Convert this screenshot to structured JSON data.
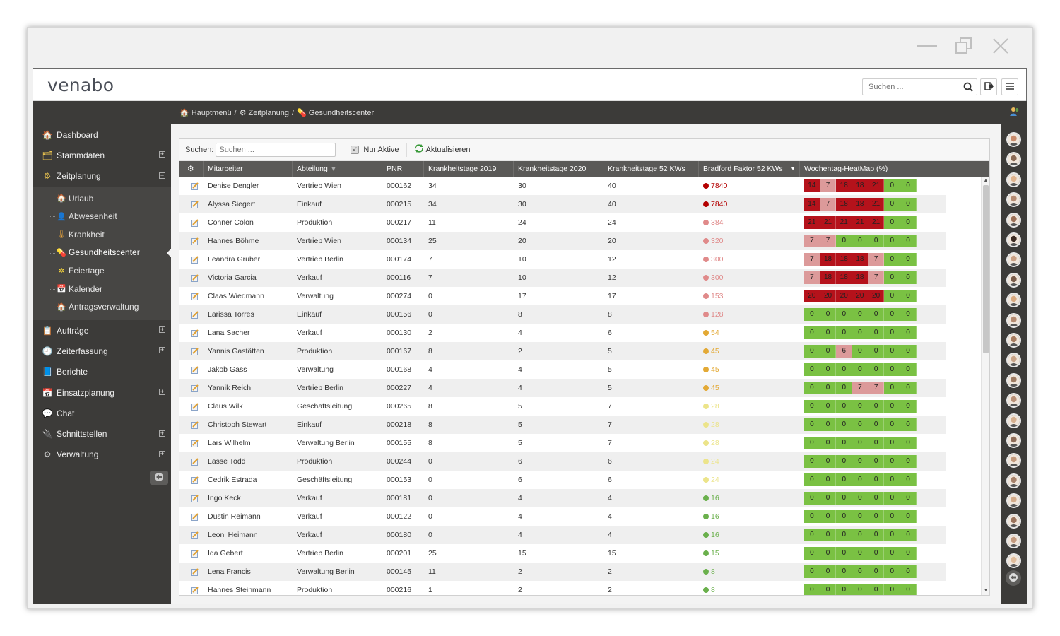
{
  "window": {
    "controls": [
      "minimize-icon",
      "restore-icon",
      "close-icon"
    ]
  },
  "header": {
    "logo": "venabo",
    "search_placeholder": "Suchen ..."
  },
  "sidebar": {
    "items": [
      {
        "label": "Dashboard",
        "icon": "home-icon",
        "expandable": false
      },
      {
        "label": "Stammdaten",
        "icon": "folder-icon",
        "expandable": true,
        "expander": "⊞"
      },
      {
        "label": "Zeitplanung",
        "icon": "gear-clock-icon",
        "expandable": true,
        "expander": "⊟"
      }
    ],
    "submenu": [
      {
        "label": "Urlaub",
        "icon": "umbrella-house-icon"
      },
      {
        "label": "Abwesenheit",
        "icon": "person-icon"
      },
      {
        "label": "Krankheit",
        "icon": "thermometer-icon"
      },
      {
        "label": "Gesundheitscenter",
        "icon": "pill-icon",
        "selected": true
      },
      {
        "label": "Feiertage",
        "icon": "star-icon"
      },
      {
        "label": "Kalender",
        "icon": "calendar-icon"
      },
      {
        "label": "Antragsverwaltung",
        "icon": "house-icon"
      }
    ],
    "items_after": [
      {
        "label": "Aufträge",
        "icon": "orders-icon",
        "expandable": true,
        "expander": "⊞"
      },
      {
        "label": "Zeiterfassung",
        "icon": "clock-icon",
        "expandable": true,
        "expander": "⊞"
      },
      {
        "label": "Berichte",
        "icon": "report-icon",
        "expandable": false
      },
      {
        "label": "Einsatzplanung",
        "icon": "planning-icon",
        "expandable": true,
        "expander": "⊞"
      },
      {
        "label": "Chat",
        "icon": "chat-icon",
        "expandable": false
      },
      {
        "label": "Schnittstellen",
        "icon": "interface-icon",
        "expandable": true,
        "expander": "⊞"
      },
      {
        "label": "Verwaltung",
        "icon": "cog-icon",
        "expandable": true,
        "expander": "⊞"
      }
    ]
  },
  "breadcrumb": {
    "items": [
      "Hauptmenü",
      "Zeitplanung",
      "Gesundheitscenter"
    ],
    "separator": "/"
  },
  "toolbar": {
    "search_label": "Suchen:",
    "search_placeholder": "Suchen ...",
    "only_active_label": "Nur Aktive",
    "only_active_checked": true,
    "refresh_label": "Aktualisieren"
  },
  "table": {
    "columns": [
      "Mitarbeiter",
      "Abteilung",
      "PNR",
      "Krankheitstage 2019",
      "Krankheitstage 2020",
      "Krankheitstage 52 KWs",
      "Bradford Faktor 52 KWs",
      "Wochentag-HeatMap (%)"
    ],
    "rows": [
      {
        "name": "Denise Dengler",
        "dept": "Vertrieb Wien",
        "pnr": "000162",
        "k2019": "34",
        "k2020": "30",
        "k52": "40",
        "bradford": "7840",
        "bcolor": "#b40000",
        "heat": [
          "14",
          "7",
          "18",
          "18",
          "21",
          "0",
          "0"
        ]
      },
      {
        "name": "Alyssa Siegert",
        "dept": "Einkauf",
        "pnr": "000215",
        "k2019": "34",
        "k2020": "30",
        "k52": "40",
        "bradford": "7840",
        "bcolor": "#b40000",
        "heat": [
          "14",
          "7",
          "18",
          "18",
          "21",
          "0",
          "0"
        ]
      },
      {
        "name": "Conner Colon",
        "dept": "Produktion",
        "pnr": "000217",
        "k2019": "11",
        "k2020": "24",
        "k52": "24",
        "bradford": "384",
        "bcolor": "#e08a8a",
        "heat": [
          "21",
          "21",
          "21",
          "21",
          "21",
          "0",
          "0"
        ]
      },
      {
        "name": "Hannes Böhme",
        "dept": "Vertrieb Wien",
        "pnr": "000134",
        "k2019": "25",
        "k2020": "20",
        "k52": "20",
        "bradford": "320",
        "bcolor": "#e08a8a",
        "heat": [
          "7",
          "7",
          "0",
          "0",
          "0",
          "0",
          "0"
        ]
      },
      {
        "name": "Leandra Gruber",
        "dept": "Vertrieb Berlin",
        "pnr": "000174",
        "k2019": "7",
        "k2020": "10",
        "k52": "12",
        "bradford": "300",
        "bcolor": "#e08a8a",
        "heat": [
          "7",
          "18",
          "18",
          "18",
          "7",
          "0",
          "0"
        ]
      },
      {
        "name": "Victoria Garcia",
        "dept": "Verkauf",
        "pnr": "000116",
        "k2019": "7",
        "k2020": "10",
        "k52": "12",
        "bradford": "300",
        "bcolor": "#e08a8a",
        "heat": [
          "7",
          "18",
          "18",
          "18",
          "7",
          "0",
          "0"
        ]
      },
      {
        "name": "Claas Wiedmann",
        "dept": "Verwaltung",
        "pnr": "000274",
        "k2019": "0",
        "k2020": "17",
        "k52": "17",
        "bradford": "153",
        "bcolor": "#e08a8a",
        "heat": [
          "20",
          "20",
          "20",
          "20",
          "20",
          "0",
          "0"
        ]
      },
      {
        "name": "Larissa Torres",
        "dept": "Einkauf",
        "pnr": "000156",
        "k2019": "0",
        "k2020": "8",
        "k52": "8",
        "bradford": "128",
        "bcolor": "#e08a8a",
        "heat": [
          "0",
          "0",
          "0",
          "0",
          "0",
          "0",
          "0"
        ]
      },
      {
        "name": "Lana Sacher",
        "dept": "Verkauf",
        "pnr": "000130",
        "k2019": "2",
        "k2020": "4",
        "k52": "6",
        "bradford": "54",
        "bcolor": "#e3a935",
        "heat": [
          "0",
          "0",
          "0",
          "0",
          "0",
          "0",
          "0"
        ]
      },
      {
        "name": "Yannis Gastätten",
        "dept": "Produktion",
        "pnr": "000167",
        "k2019": "8",
        "k2020": "2",
        "k52": "5",
        "bradford": "45",
        "bcolor": "#e3a935",
        "heat": [
          "0",
          "0",
          "6",
          "0",
          "0",
          "0",
          "0"
        ]
      },
      {
        "name": "Jakob Gass",
        "dept": "Verwaltung",
        "pnr": "000168",
        "k2019": "4",
        "k2020": "4",
        "k52": "5",
        "bradford": "45",
        "bcolor": "#e3a935",
        "heat": [
          "0",
          "0",
          "0",
          "0",
          "0",
          "0",
          "0"
        ]
      },
      {
        "name": "Yannik Reich",
        "dept": "Vertrieb Berlin",
        "pnr": "000227",
        "k2019": "4",
        "k2020": "4",
        "k52": "5",
        "bradford": "45",
        "bcolor": "#e3a935",
        "heat": [
          "0",
          "0",
          "0",
          "7",
          "7",
          "0",
          "0"
        ]
      },
      {
        "name": "Claus Wilk",
        "dept": "Geschäftsleitung",
        "pnr": "000265",
        "k2019": "8",
        "k2020": "5",
        "k52": "7",
        "bradford": "28",
        "bcolor": "#ece48a",
        "heat": [
          "0",
          "0",
          "0",
          "0",
          "0",
          "0",
          "0"
        ]
      },
      {
        "name": "Christoph Stewart",
        "dept": "Einkauf",
        "pnr": "000218",
        "k2019": "8",
        "k2020": "5",
        "k52": "7",
        "bradford": "28",
        "bcolor": "#ece48a",
        "heat": [
          "0",
          "0",
          "0",
          "0",
          "0",
          "0",
          "0"
        ]
      },
      {
        "name": "Lars Wilhelm",
        "dept": "Verwaltung Berlin",
        "pnr": "000155",
        "k2019": "8",
        "k2020": "5",
        "k52": "7",
        "bradford": "28",
        "bcolor": "#ece48a",
        "heat": [
          "0",
          "0",
          "0",
          "0",
          "0",
          "0",
          "0"
        ]
      },
      {
        "name": "Lasse Todd",
        "dept": "Produktion",
        "pnr": "000244",
        "k2019": "0",
        "k2020": "6",
        "k52": "6",
        "bradford": "24",
        "bcolor": "#ece48a",
        "heat": [
          "0",
          "0",
          "0",
          "0",
          "0",
          "0",
          "0"
        ]
      },
      {
        "name": "Cedrik Estrada",
        "dept": "Geschäftsleitung",
        "pnr": "000153",
        "k2019": "0",
        "k2020": "6",
        "k52": "6",
        "bradford": "24",
        "bcolor": "#ece48a",
        "heat": [
          "0",
          "0",
          "0",
          "0",
          "0",
          "0",
          "0"
        ]
      },
      {
        "name": "Ingo Keck",
        "dept": "Verkauf",
        "pnr": "000181",
        "k2019": "0",
        "k2020": "4",
        "k52": "4",
        "bradford": "16",
        "bcolor": "#6ab04c",
        "heat": [
          "0",
          "0",
          "0",
          "0",
          "0",
          "0",
          "0"
        ]
      },
      {
        "name": "Dustin Reimann",
        "dept": "Verkauf",
        "pnr": "000122",
        "k2019": "0",
        "k2020": "4",
        "k52": "4",
        "bradford": "16",
        "bcolor": "#6ab04c",
        "heat": [
          "0",
          "0",
          "0",
          "0",
          "0",
          "0",
          "0"
        ]
      },
      {
        "name": "Leoni Heimann",
        "dept": "Verkauf",
        "pnr": "000180",
        "k2019": "0",
        "k2020": "4",
        "k52": "4",
        "bradford": "16",
        "bcolor": "#6ab04c",
        "heat": [
          "0",
          "0",
          "0",
          "0",
          "0",
          "0",
          "0"
        ]
      },
      {
        "name": "Ida Gebert",
        "dept": "Vertrieb Berlin",
        "pnr": "000201",
        "k2019": "25",
        "k2020": "15",
        "k52": "15",
        "bradford": "15",
        "bcolor": "#6ab04c",
        "heat": [
          "0",
          "0",
          "0",
          "0",
          "0",
          "0",
          "0"
        ]
      },
      {
        "name": "Lena Francis",
        "dept": "Verwaltung Berlin",
        "pnr": "000145",
        "k2019": "11",
        "k2020": "2",
        "k52": "2",
        "bradford": "8",
        "bcolor": "#6ab04c",
        "heat": [
          "0",
          "0",
          "0",
          "0",
          "0",
          "0",
          "0"
        ]
      },
      {
        "name": "Hannes Steinmann",
        "dept": "Produktion",
        "pnr": "000216",
        "k2019": "1",
        "k2020": "2",
        "k52": "2",
        "bradford": "8",
        "bcolor": "#6ab04c",
        "heat": [
          "0",
          "0",
          "0",
          "0",
          "0",
          "0",
          "0"
        ]
      }
    ]
  },
  "heat_colors": {
    "dark_red": "#b5121b",
    "light_red": "#dc9a9a",
    "green": "#7ac143"
  },
  "rightbar": {
    "avatar_count": 22,
    "avatar_colors": [
      "#c98b6b",
      "#8a6a55",
      "#e0b48e",
      "#b58b72",
      "#9c7057",
      "#3b2a22",
      "#caa084",
      "#7a5c4a",
      "#d9a97f",
      "#b48a70",
      "#a77c60",
      "#c9a488",
      "#9e7b62",
      "#b89077",
      "#d6b08f",
      "#8d6b57",
      "#c2997c",
      "#a6816a",
      "#d3ab8a",
      "#9b745d",
      "#c49a7e",
      "#e1bd9c"
    ]
  }
}
